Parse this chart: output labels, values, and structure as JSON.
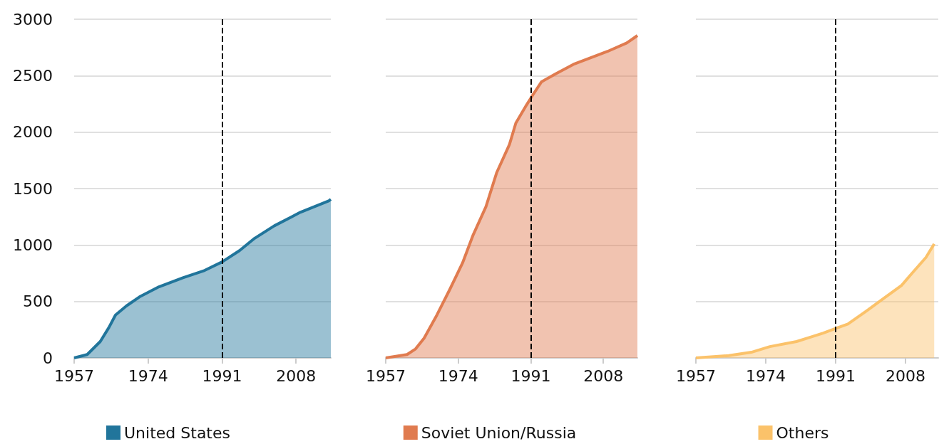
{
  "chart_data": [
    {
      "type": "area",
      "xlim": [
        1957,
        2016
      ],
      "xticks": [
        1957,
        1974,
        1991,
        2008
      ],
      "ylim": [
        0,
        3000
      ],
      "yticks": [
        0,
        500,
        1000,
        1500,
        2000,
        2500,
        3000
      ],
      "grid": "y",
      "legend": "bottom",
      "ref_lines": [
        {
          "axis": "x",
          "value": 1991,
          "color": "#000000",
          "line_style": "dashed"
        }
      ],
      "series": [
        {
          "name": "United States",
          "color": "#21759b",
          "x": [
            1957,
            1960,
            1963,
            1965,
            1966.5,
            1969,
            1972,
            1976.5,
            1982,
            1987,
            1991,
            1995,
            1998.5,
            2003,
            2007,
            2009,
            2015.5,
            2016
          ],
          "values": [
            0,
            30,
            145,
            270,
            380,
            460,
            540,
            630,
            710,
            775,
            850,
            950,
            1060,
            1170,
            1250,
            1290,
            1390,
            1405
          ]
        }
      ]
    },
    {
      "type": "area",
      "xlim": [
        1957,
        2016
      ],
      "xticks": [
        1957,
        1974,
        1991,
        2008
      ],
      "ylim": [
        0,
        3000
      ],
      "yticks": [
        0,
        500,
        1000,
        1500,
        2000,
        2500,
        3000
      ],
      "grid": "y",
      "legend": "bottom",
      "tick_labels": "x",
      "ref_lines": [
        {
          "axis": "x",
          "value": 1991,
          "color": "#000000",
          "line_style": "dashed"
        }
      ],
      "series": [
        {
          "name": "Soviet Union/Russia",
          "color": "#e07b4f",
          "x": [
            1957,
            1962,
            1964,
            1966,
            1969,
            1972,
            1975,
            1977.5,
            1980.5,
            1983,
            1986,
            1987.5,
            1990,
            1991.5,
            1993.5,
            1997,
            2001,
            2005.5,
            2009,
            2013.5,
            2016
          ],
          "values": [
            0,
            30,
            80,
            175,
            380,
            605,
            840,
            1090,
            1340,
            1640,
            1890,
            2080,
            2240,
            2330,
            2445,
            2520,
            2600,
            2665,
            2715,
            2790,
            2855
          ]
        }
      ]
    },
    {
      "type": "area",
      "xlim": [
        1957,
        2016
      ],
      "xticks": [
        1957,
        1974,
        1991,
        2008
      ],
      "ylim": [
        0,
        3000
      ],
      "yticks": [
        0,
        500,
        1000,
        1500,
        2000,
        2500,
        3000
      ],
      "grid": "y",
      "legend": "bottom",
      "tick_labels": "x",
      "ref_lines": [
        {
          "axis": "x",
          "value": 1991,
          "color": "#000000",
          "line_style": "dashed"
        }
      ],
      "series": [
        {
          "name": "Others",
          "color": "#fbc26a",
          "x": [
            1957,
            1965,
            1970.5,
            1975,
            1981.5,
            1985,
            1988,
            1991,
            1994,
            1998.5,
            2003,
            2007,
            2009.5,
            2013,
            2015
          ],
          "values": [
            0,
            20,
            50,
            100,
            145,
            185,
            220,
            260,
            300,
            415,
            535,
            640,
            745,
            890,
            1010
          ]
        }
      ]
    }
  ]
}
